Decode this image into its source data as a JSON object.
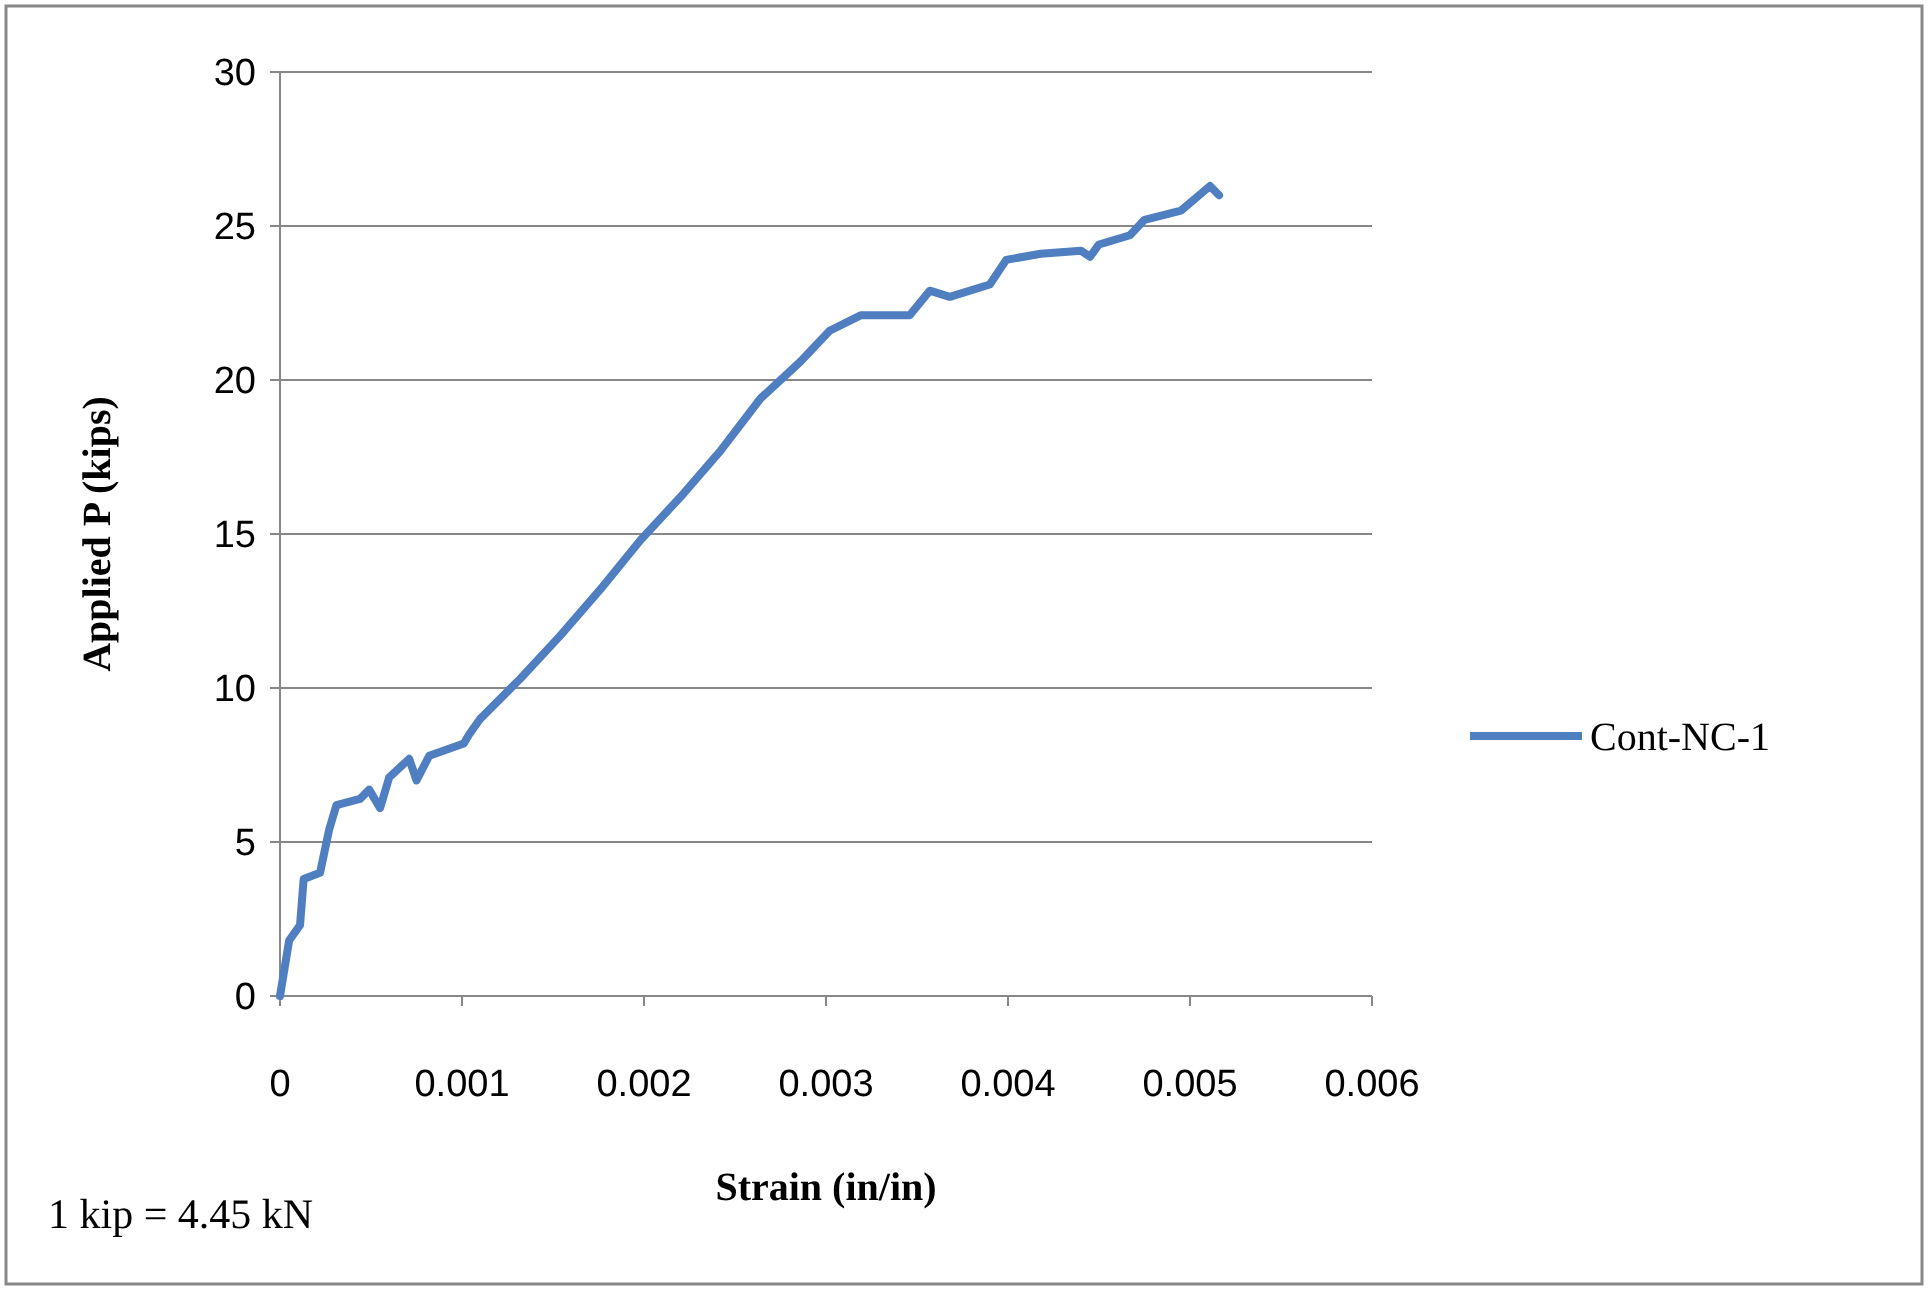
{
  "chart_data": {
    "type": "line",
    "xlabel": "Strain (in/in)",
    "ylabel": "Applied P (kips)",
    "xlim": [
      0,
      0.006
    ],
    "xticks": [
      0,
      0.001,
      0.002,
      0.003,
      0.004,
      0.005,
      0.006
    ],
    "ylim": [
      0,
      30
    ],
    "yticks": [
      0,
      5,
      10,
      15,
      20,
      25,
      30
    ],
    "grid": "y",
    "legend": "right",
    "annotations": [
      "1 kip = 4.45 kN"
    ],
    "series": [
      {
        "name": "Cont-NC-1",
        "color": "#4f7fc0",
        "x": [
          0,
          5e-05,
          0.00011,
          0.00013,
          0.00022,
          0.00027,
          0.00031,
          0.00044,
          0.00049,
          0.00055,
          0.0006,
          0.00071,
          0.00075,
          0.00082,
          0.00101,
          0.00104,
          0.0011,
          0.00132,
          0.00154,
          0.00176,
          0.00198,
          0.0022,
          0.00242,
          0.00264,
          0.00286,
          0.00302,
          0.00319,
          0.00346,
          0.00357,
          0.00368,
          0.0039,
          0.00399,
          0.00418,
          0.0044,
          0.00445,
          0.0045,
          0.00467,
          0.00475,
          0.00495,
          0.00505,
          0.00511,
          0.00516
        ],
        "values": [
          0,
          1.8,
          2.3,
          3.8,
          4,
          5.4,
          6.2,
          6.4,
          6.7,
          6.1,
          7.1,
          7.7,
          7,
          7.8,
          8.2,
          8.5,
          9,
          10.3,
          11.7,
          13.2,
          14.8,
          16.2,
          17.7,
          19.4,
          20.6,
          21.6,
          22.1,
          22.1,
          22.9,
          22.7,
          23.1,
          23.9,
          24.1,
          24.2,
          24,
          24.4,
          24.7,
          25.2,
          25.5,
          26,
          26.3,
          26
        ]
      }
    ]
  }
}
